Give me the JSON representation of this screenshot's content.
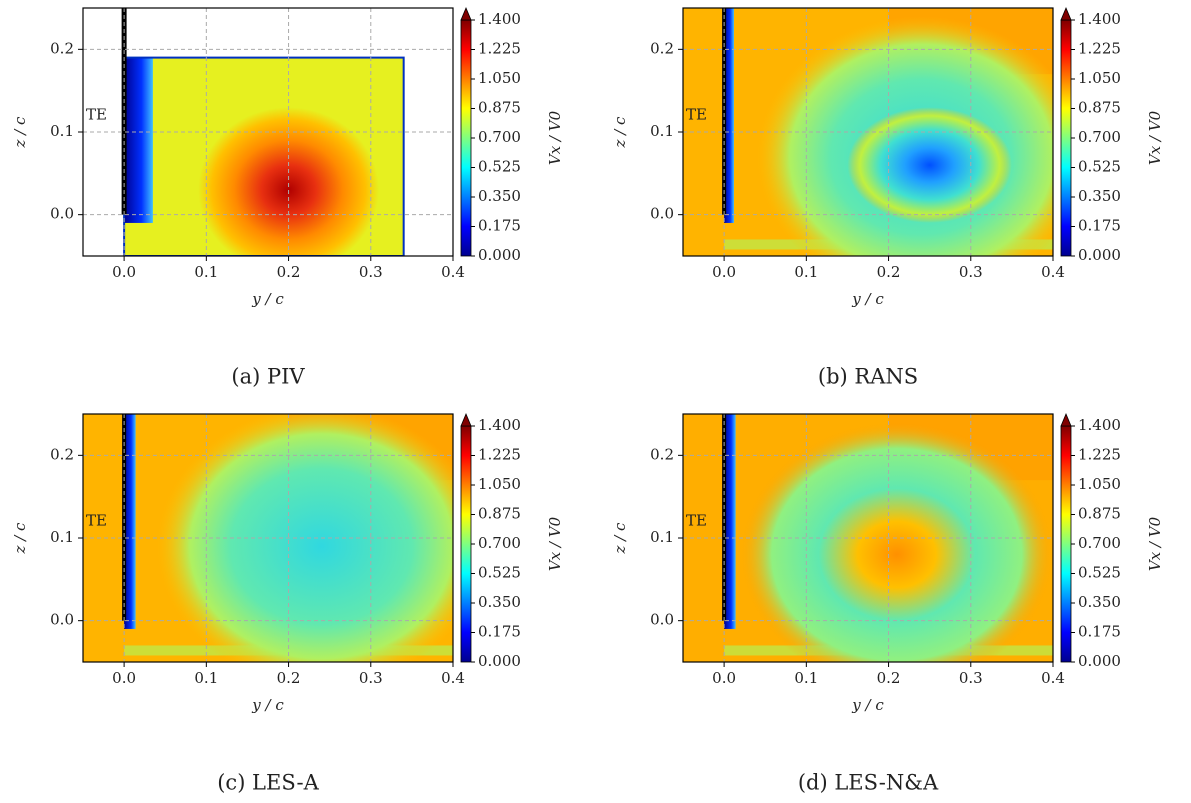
{
  "chart_data": [
    {
      "type": "contour",
      "caption": "(a) PIV",
      "xlabel": "y / c",
      "ylabel": "z / c",
      "annotation": "TE",
      "xlim": [
        -0.05,
        0.4
      ],
      "ylim": [
        -0.05,
        0.25
      ],
      "xticks": [
        {
          "value": 0,
          "label": "0.0"
        },
        0.1,
        0.2,
        0.3,
        0.4
      ],
      "yticks": [
        {
          "value": 0,
          "label": "0.0"
        },
        0.1,
        0.2
      ],
      "grid": true,
      "colormap": "jet",
      "colorbar": {
        "label": "Vx / V0",
        "lim": [
          0,
          1.4
        ],
        "ticks": [
          {
            "value": 0,
            "label": "0.000"
          },
          0.175,
          {
            "value": 0.35,
            "label": "0.350"
          },
          0.525,
          {
            "value": 0.7,
            "label": "0.700"
          },
          0.875,
          {
            "value": 1.05,
            "label": "1.050"
          },
          1.225,
          {
            "value": 1.4,
            "label": "1.400"
          }
        ]
      }
    },
    {
      "type": "contour",
      "caption": "(b) RANS",
      "xlabel": "y / c",
      "ylabel": "z / c",
      "annotation": "TE",
      "xlim": [
        -0.05,
        0.4
      ],
      "ylim": [
        -0.05,
        0.25
      ],
      "xticks": [
        {
          "value": 0,
          "label": "0.0"
        },
        0.1,
        0.2,
        0.3,
        0.4
      ],
      "yticks": [
        {
          "value": 0,
          "label": "0.0"
        },
        0.1,
        0.2
      ],
      "grid": true,
      "colormap": "jet",
      "colorbar": {
        "label": "Vx / V0",
        "lim": [
          0,
          1.4
        ],
        "ticks": [
          {
            "value": 0,
            "label": "0.000"
          },
          0.175,
          {
            "value": 0.35,
            "label": "0.350"
          },
          0.525,
          {
            "value": 0.7,
            "label": "0.700"
          },
          0.875,
          {
            "value": 1.05,
            "label": "1.050"
          },
          1.225,
          {
            "value": 1.4,
            "label": "1.400"
          }
        ]
      }
    },
    {
      "type": "contour",
      "caption": "(c) LES-A",
      "xlabel": "y / c",
      "ylabel": "z / c",
      "annotation": "TE",
      "xlim": [
        -0.05,
        0.4
      ],
      "ylim": [
        -0.05,
        0.25
      ],
      "xticks": [
        {
          "value": 0,
          "label": "0.0"
        },
        0.1,
        0.2,
        0.3,
        0.4
      ],
      "yticks": [
        {
          "value": 0,
          "label": "0.0"
        },
        0.1,
        0.2
      ],
      "grid": true,
      "colormap": "jet",
      "colorbar": {
        "label": "Vx / V0",
        "lim": [
          0,
          1.4
        ],
        "ticks": [
          {
            "value": 0,
            "label": "0.000"
          },
          0.175,
          {
            "value": 0.35,
            "label": "0.350"
          },
          0.525,
          {
            "value": 0.7,
            "label": "0.700"
          },
          0.875,
          {
            "value": 1.05,
            "label": "1.050"
          },
          1.225,
          {
            "value": 1.4,
            "label": "1.400"
          }
        ]
      }
    },
    {
      "type": "contour",
      "caption": "(d) LES-N&A",
      "xlabel": "y / c",
      "ylabel": "z / c",
      "annotation": "TE",
      "xlim": [
        -0.05,
        0.4
      ],
      "ylim": [
        -0.05,
        0.25
      ],
      "xticks": [
        {
          "value": 0,
          "label": "0.0"
        },
        0.1,
        0.2,
        0.3,
        0.4
      ],
      "yticks": [
        {
          "value": 0,
          "label": "0.0"
        },
        0.1,
        0.2
      ],
      "grid": true,
      "colormap": "jet",
      "colorbar": {
        "label": "Vx / V0",
        "lim": [
          0,
          1.4
        ],
        "ticks": [
          {
            "value": 0,
            "label": "0.000"
          },
          0.175,
          {
            "value": 0.35,
            "label": "0.350"
          },
          0.525,
          {
            "value": 0.7,
            "label": "0.700"
          },
          0.875,
          {
            "value": 1.05,
            "label": "1.050"
          },
          1.225,
          {
            "value": 1.4,
            "label": "1.400"
          }
        ]
      }
    }
  ]
}
